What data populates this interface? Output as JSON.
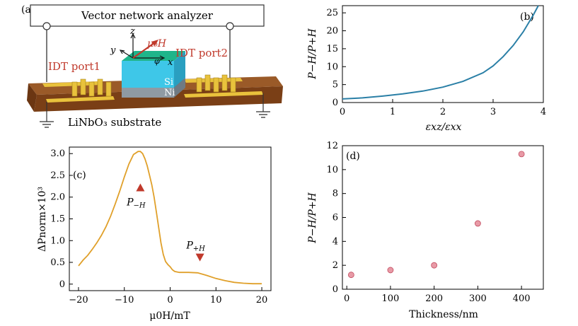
{
  "colors": {
    "curve_b": "#2a7fa6",
    "curve_c": "#e0a02a",
    "scatter_d": "#e89aa6",
    "scatter_d_edge": "#c24a5e",
    "accent_red": "#c0392b",
    "substrate": "#8a4a1e",
    "idt_gold": "#e9c23c",
    "si_cyan": "#3ec7e8",
    "si_top": "#1fb58a",
    "ni_gray": "#8f9aa3"
  },
  "panel_a": {
    "panel_label": "(a)",
    "vna_label": "Vector network analyzer",
    "port1_label": "IDT port1",
    "port2_label": "IDT port2",
    "substrate_label": "LiNbO₃ substrate",
    "si_label": "Si",
    "ni_label": "Ni",
    "axis_x": "x",
    "axis_y": "y",
    "axis_z": "z",
    "field_label": "μ₀H",
    "angle_label": "φ"
  },
  "chart_data": [
    {
      "panel": "b",
      "panel_label": "(b)",
      "type": "line",
      "xlabel": "εxz/εxx",
      "ylabel": "P−H/P+H",
      "xlim": [
        0,
        4
      ],
      "ylim": [
        0,
        27
      ],
      "xticks": [
        "0",
        "1",
        "2",
        "3",
        "4"
      ],
      "yticks": [
        "0",
        "5",
        "10",
        "15",
        "20",
        "25"
      ],
      "x": [
        0,
        0.4,
        0.8,
        1.2,
        1.6,
        2.0,
        2.4,
        2.8,
        3.0,
        3.2,
        3.4,
        3.6,
        3.8,
        3.9
      ],
      "y": [
        1.0,
        1.3,
        1.8,
        2.4,
        3.2,
        4.3,
        5.9,
        8.3,
        10.2,
        12.8,
        15.9,
        19.7,
        24.4,
        27.0
      ]
    },
    {
      "panel": "c",
      "panel_label": "(c)",
      "type": "line",
      "xlabel": "μ0H/mT",
      "ylabel": "ΔPnorm×10³",
      "xlim": [
        -22,
        22
      ],
      "ylim": [
        -0.15,
        3.15
      ],
      "xticks": [
        "−20",
        "−10",
        "0",
        "10",
        "20"
      ],
      "yticks": [
        "0",
        "0.5",
        "1.0",
        "1.5",
        "2.0",
        "2.5",
        "3.0"
      ],
      "x": [
        -20,
        -19,
        -18,
        -17,
        -16,
        -15,
        -14,
        -13,
        -12,
        -11,
        -10,
        -9,
        -8,
        -7,
        -6.5,
        -6,
        -5.5,
        -5,
        -4.5,
        -4,
        -3.5,
        -3,
        -2.5,
        -2,
        -1.5,
        -1,
        -0.5,
        0,
        0.5,
        1,
        2,
        4,
        6,
        8,
        10,
        12,
        14,
        16,
        18,
        20
      ],
      "y": [
        0.42,
        0.55,
        0.66,
        0.8,
        0.95,
        1.12,
        1.32,
        1.56,
        1.84,
        2.14,
        2.46,
        2.76,
        2.98,
        3.05,
        3.05,
        3.0,
        2.88,
        2.72,
        2.5,
        2.28,
        2.0,
        1.65,
        1.3,
        0.95,
        0.68,
        0.52,
        0.45,
        0.4,
        0.33,
        0.29,
        0.27,
        0.27,
        0.26,
        0.2,
        0.13,
        0.08,
        0.04,
        0.02,
        0.01,
        0.01
      ],
      "annotations": [
        {
          "text_main": "P",
          "text_sub": "−H",
          "x": -6.5,
          "y": 2.2,
          "marker": "triangle-up"
        },
        {
          "text_main": "P",
          "text_sub": "+H",
          "x": 6.5,
          "y": 0.62,
          "marker": "triangle-down"
        }
      ]
    },
    {
      "panel": "d",
      "panel_label": "(d)",
      "type": "scatter",
      "xlabel": "Thickness/nm",
      "ylabel": "P−H/P+H",
      "xlim": [
        -10,
        450
      ],
      "ylim": [
        0,
        12
      ],
      "xticks": [
        "0",
        "100",
        "200",
        "300",
        "400"
      ],
      "yticks": [
        "0",
        "2",
        "4",
        "6",
        "8",
        "10",
        "12"
      ],
      "x": [
        10,
        100,
        200,
        300,
        400
      ],
      "y": [
        1.2,
        1.6,
        2.0,
        5.5,
        11.3
      ]
    }
  ]
}
